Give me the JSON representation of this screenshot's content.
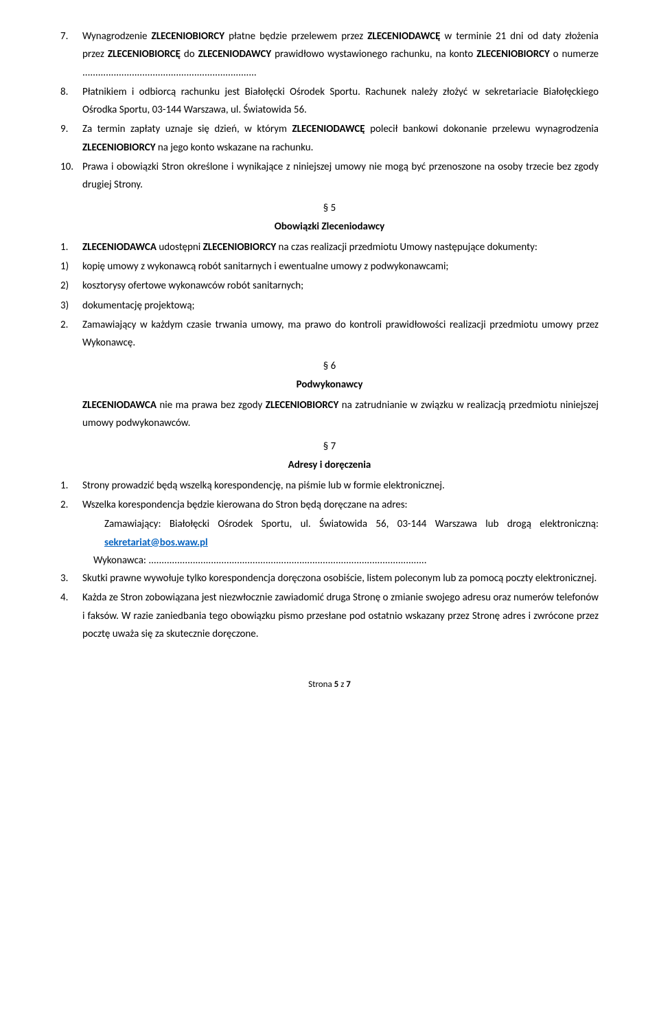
{
  "items": {
    "n7": "7.",
    "p7": "Wynagrodzenie <b>ZLECENIOBIORCY</b> płatne będzie przelewem przez <b>ZLECENIODAWCĘ</b> w terminie 21 dni od daty złożenia przez <b>ZLECENIOBIORCĘ</b> do <b>ZLECENIODAWCY</b> prawidłowo wystawionego rachunku, na konto <b>ZLECENIOBIORCY</b> o numerze ...................................................................",
    "n8": "8.",
    "p8": "Płatnikiem i odbiorcą rachunku jest Białołęcki Ośrodek Sportu. Rachunek należy złożyć w sekretariacie Białołęckiego Ośrodka Sportu, 03-144 Warszawa, ul. Światowida 56.",
    "n9": "9.",
    "p9": "Za termin zapłaty uznaje się dzień, w którym <b>ZLECENIODAWCĘ</b> polecił bankowi dokonanie przelewu wynagrodzenia <b>ZLECENIOBIORCY</b> na jego konto wskazane na rachunku.",
    "n10": "10.",
    "p10": "Prawa i obowiązki Stron określone i wynikające z niniejszej umowy nie mogą być przenoszone na osoby trzecie bez zgody drugiej Strony."
  },
  "s5": {
    "num": "§ 5",
    "title": "Obowiązki Zleceniodawcy",
    "n1": "1.",
    "p1": "<b>ZLECENIODAWCA</b> udostępni <b>ZLECENIOBIORCY</b> na czas realizacji przedmiotu Umowy następujące dokumenty:",
    "sn1": "1)",
    "sp1": "kopię umowy z wykonawcą robót sanitarnych i ewentualne umowy z podwykonawcami;",
    "sn2": "2)",
    "sp2": "kosztorysy ofertowe wykonawców robót sanitarnych;",
    "sn3": "3)",
    "sp3": "dokumentację projektową;",
    "n2": "2.",
    "p2": "Zamawiający w każdym czasie trwania umowy, ma prawo do kontroli prawidłowości realizacji przedmiotu umowy przez Wykonawcę."
  },
  "s6": {
    "num": "§ 6",
    "title": "Podwykonawcy",
    "p": "<b>ZLECENIODAWCA</b> nie ma prawa bez zgody <b>ZLECENIOBIORCY</b> na zatrudnianie w związku w realizacją przedmiotu niniejszej umowy podwykonawców."
  },
  "s7": {
    "num": "§ 7",
    "title": "Adresy i doręczenia",
    "n1": "1.",
    "p1": "Strony prowadzić będą wszelką korespondencję, na piśmie lub w formie elektronicznej.",
    "n2": "2.",
    "p2": "Wszelka  korespondencja będzie kierowana do Stron będą doręczane na adres:",
    "addr1_pre": "Zamawiający: Białołęcki Ośrodek Sportu, ul. Światowida 56, 03-144 Warszawa lub drogą elektroniczną: ",
    "email": "sekretariat@bos.waw.pl",
    "addr2": "Wykonawca: ...........................................................................................................",
    "n3": "3.",
    "p3": "Skutki prawne wywołuje tylko korespondencja doręczona osobiście, listem poleconym lub za pomocą poczty elektronicznej.",
    "n4": "4.",
    "p4": "Każda ze Stron zobowiązana jest niezwłocznie zawiadomić druga Stronę o zmianie swojego adresu oraz numerów telefonów i faksów. W razie zaniedbania tego obowiązku pismo przesłane pod ostatnio wskazany przez Stronę adres i zwrócone przez pocztę uważa się za skutecznie doręczone."
  },
  "footer_pre": "Strona ",
  "footer_page": "5",
  "footer_mid": " z ",
  "footer_total": "7"
}
